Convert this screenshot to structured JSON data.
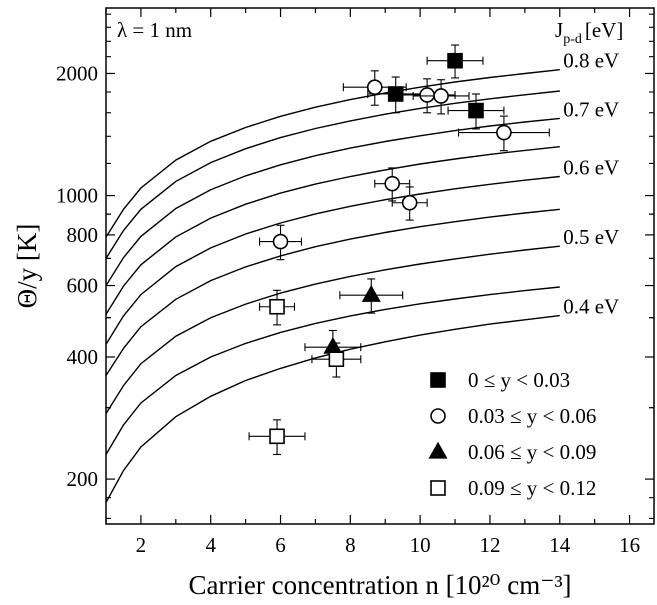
{
  "chart_data": {
    "type": "scatter",
    "xlabel": "Carrier concentration n [10²⁰ cm⁻³]",
    "ylabel": "Θ/y [K]",
    "xlim": [
      1,
      16.7
    ],
    "ylim": [
      155,
      2900
    ],
    "yscale": "log",
    "x_ticks": [
      2,
      4,
      6,
      8,
      10,
      12,
      14,
      16
    ],
    "y_ticks": [
      200,
      400,
      600,
      800,
      1000,
      2000
    ],
    "annotation": "λ = 1 nm",
    "curve_header": {
      "main": "J",
      "sub": "p-d",
      "unit": "[eV]"
    },
    "curves": [
      {
        "label": "0.4 eV",
        "value": 0.4,
        "x": [
          1,
          1.5,
          2,
          3,
          4,
          5,
          6,
          7,
          8,
          9,
          10,
          11,
          12,
          13,
          14
        ],
        "y": [
          175,
          210,
          240,
          285,
          320,
          350,
          375,
          398,
          418,
          436,
          453,
          468,
          482,
          494,
          506
        ]
      },
      {
        "label": "",
        "value": 0.45,
        "x": [
          1,
          1.5,
          2,
          3,
          4,
          5,
          6,
          7,
          8,
          9,
          10,
          11,
          12,
          13,
          14
        ],
        "y": [
          230,
          272,
          308,
          360,
          400,
          432,
          460,
          484,
          505,
          524,
          541,
          556,
          570,
          583,
          595
        ]
      },
      {
        "label": "0.5 eV",
        "value": 0.5,
        "x": [
          1,
          1.5,
          2,
          3,
          4,
          5,
          6,
          7,
          8,
          9,
          10,
          11,
          12,
          13,
          14
        ],
        "y": [
          290,
          340,
          385,
          450,
          500,
          540,
          575,
          605,
          632,
          656,
          678,
          698,
          717,
          734,
          750
        ]
      },
      {
        "label": "",
        "value": 0.55,
        "x": [
          1,
          1.5,
          2,
          3,
          4,
          5,
          6,
          7,
          8,
          9,
          10,
          11,
          12,
          13,
          14
        ],
        "y": [
          360,
          420,
          475,
          555,
          617,
          667,
          710,
          748,
          781,
          811,
          838,
          862,
          885,
          906,
          925
        ]
      },
      {
        "label": "0.6 eV",
        "value": 0.6,
        "x": [
          1,
          1.5,
          2,
          3,
          4,
          5,
          6,
          7,
          8,
          9,
          10,
          11,
          12,
          13,
          14
        ],
        "y": [
          430,
          505,
          570,
          668,
          743,
          804,
          856,
          901,
          941,
          977,
          1009,
          1039,
          1066,
          1091,
          1114
        ]
      },
      {
        "label": "",
        "value": 0.65,
        "x": [
          1,
          1.5,
          2,
          3,
          4,
          5,
          6,
          7,
          8,
          9,
          10,
          11,
          12,
          13,
          14
        ],
        "y": [
          510,
          598,
          675,
          791,
          880,
          952,
          1014,
          1067,
          1114,
          1157,
          1196,
          1231,
          1263,
          1292,
          1320
        ]
      },
      {
        "label": "0.7 eV",
        "value": 0.7,
        "x": [
          1,
          1.5,
          2,
          3,
          4,
          5,
          6,
          7,
          8,
          9,
          10,
          11,
          12,
          13,
          14
        ],
        "y": [
          600,
          703,
          793,
          929,
          1034,
          1118,
          1191,
          1254,
          1309,
          1359,
          1404,
          1446,
          1484,
          1518,
          1550
        ]
      },
      {
        "label": "",
        "value": 0.75,
        "x": [
          1,
          1.5,
          2,
          3,
          4,
          5,
          6,
          7,
          8,
          9,
          10,
          11,
          12,
          13,
          14
        ],
        "y": [
          700,
          820,
          925,
          1084,
          1206,
          1305,
          1390,
          1463,
          1528,
          1587,
          1640,
          1688,
          1732,
          1772,
          1810
        ]
      },
      {
        "label": "0.8 eV",
        "value": 0.8,
        "x": [
          1,
          1.5,
          2,
          3,
          4,
          5,
          6,
          7,
          8,
          9,
          10,
          11,
          12,
          13,
          14
        ],
        "y": [
          790,
          925,
          1044,
          1223,
          1361,
          1472,
          1568,
          1651,
          1724,
          1790,
          1850,
          1905,
          1955,
          2000,
          2043
        ]
      }
    ],
    "series": [
      {
        "name": "0 ≤ y < 0.03",
        "marker": "square-filled",
        "points": [
          {
            "x": 11.0,
            "y": 2150,
            "xerr": 0.8,
            "yerr": 200
          },
          {
            "x": 9.3,
            "y": 1780,
            "xerr": 0.8,
            "yerr": 180
          },
          {
            "x": 11.6,
            "y": 1620,
            "xerr": 0.8,
            "yerr": 160
          }
        ]
      },
      {
        "name": "0.03 ≤ y < 0.06",
        "marker": "circle-open",
        "points": [
          {
            "x": 8.7,
            "y": 1850,
            "xerr": 0.9,
            "yerr": 180
          },
          {
            "x": 10.2,
            "y": 1770,
            "xerr": 0.8,
            "yerr": 170
          },
          {
            "x": 10.6,
            "y": 1760,
            "xerr": 0.8,
            "yerr": 170
          },
          {
            "x": 12.4,
            "y": 1430,
            "xerr": 1.3,
            "yerr": 140
          },
          {
            "x": 9.2,
            "y": 1070,
            "xerr": 0.5,
            "yerr": 100
          },
          {
            "x": 9.7,
            "y": 960,
            "xerr": 0.5,
            "yerr": 90
          },
          {
            "x": 6.0,
            "y": 770,
            "xerr": 0.6,
            "yerr": 75
          }
        ]
      },
      {
        "name": "0.06 ≤ y < 0.09",
        "marker": "triangle-filled",
        "points": [
          {
            "x": 8.6,
            "y": 568,
            "xerr": 0.9,
            "yerr": 55
          },
          {
            "x": 7.5,
            "y": 423,
            "xerr": 0.8,
            "yerr": 42
          }
        ]
      },
      {
        "name": "0.09 ≤ y < 0.12",
        "marker": "square-open",
        "points": [
          {
            "x": 5.9,
            "y": 532,
            "xerr": 0.5,
            "yerr": 52
          },
          {
            "x": 7.6,
            "y": 395,
            "xerr": 0.7,
            "yerr": 38
          },
          {
            "x": 5.9,
            "y": 255,
            "xerr": 0.8,
            "yerr": 25
          }
        ]
      }
    ],
    "legend_position": "bottom-right",
    "grid": false
  }
}
